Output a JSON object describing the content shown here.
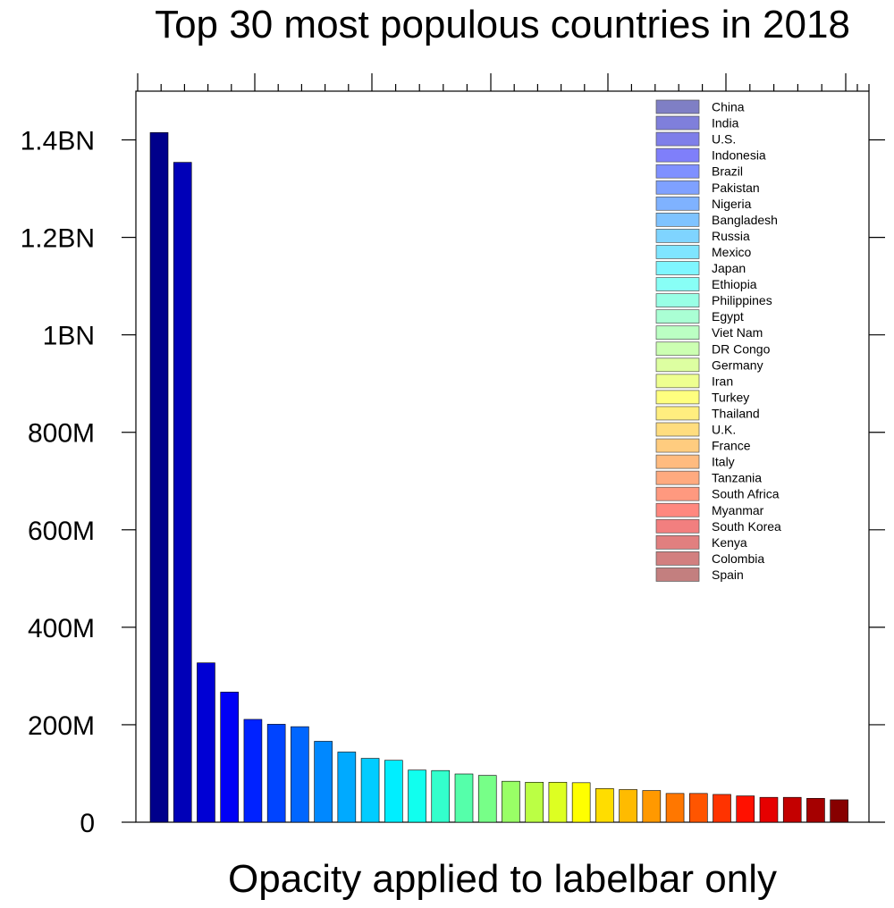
{
  "chart_data": {
    "type": "bar",
    "title": "Top 30 most populous countries in 2018",
    "xlabel": "Opacity applied to labelbar only",
    "ylabel": "",
    "ylim": [
      0,
      1500000000
    ],
    "yticks": [
      {
        "value": 0,
        "label": "0"
      },
      {
        "value": 200000000,
        "label": "200M"
      },
      {
        "value": 400000000,
        "label": "400M"
      },
      {
        "value": 600000000,
        "label": "600M"
      },
      {
        "value": 800000000,
        "label": "800M"
      },
      {
        "value": 1000000000,
        "label": "1BN"
      },
      {
        "value": 1200000000,
        "label": "1.2BN"
      },
      {
        "value": 1400000000,
        "label": "1.4BN"
      }
    ],
    "legend_position": "top-right",
    "legend_opacity": 0.5,
    "categories": [
      "China",
      "India",
      "U.S.",
      "Indonesia",
      "Brazil",
      "Pakistan",
      "Nigeria",
      "Bangladesh",
      "Russia",
      "Mexico",
      "Japan",
      "Ethiopia",
      "Philippines",
      "Egypt",
      "Viet Nam",
      "DR Congo",
      "Germany",
      "Iran",
      "Turkey",
      "Thailand",
      "U.K.",
      "France",
      "Italy",
      "Tanzania",
      "South Africa",
      "Myanmar",
      "South Korea",
      "Kenya",
      "Colombia",
      "Spain"
    ],
    "values": [
      1415000000,
      1354000000,
      327000000,
      267000000,
      211000000,
      201000000,
      196000000,
      166000000,
      144000000,
      131000000,
      127000000,
      107000000,
      106000000,
      99000000,
      96000000,
      84000000,
      82000000,
      82000000,
      81000000,
      69000000,
      67000000,
      65000000,
      59000000,
      59000000,
      57000000,
      54000000,
      51000000,
      51000000,
      49000000,
      46000000
    ],
    "colors": [
      "#00008b",
      "#0000b8",
      "#0000d4",
      "#0000f5",
      "#0022ff",
      "#0044ff",
      "#0066ff",
      "#0088ff",
      "#00aaff",
      "#00ccff",
      "#00eeff",
      "#11ffee",
      "#33ffcc",
      "#55ffaa",
      "#77ff88",
      "#99ff66",
      "#bbff44",
      "#ddff22",
      "#ffff00",
      "#ffdd00",
      "#ffbb00",
      "#ff9900",
      "#ff7700",
      "#ff5500",
      "#ff3300",
      "#ff1100",
      "#e60000",
      "#c40000",
      "#a50000",
      "#870000"
    ]
  }
}
